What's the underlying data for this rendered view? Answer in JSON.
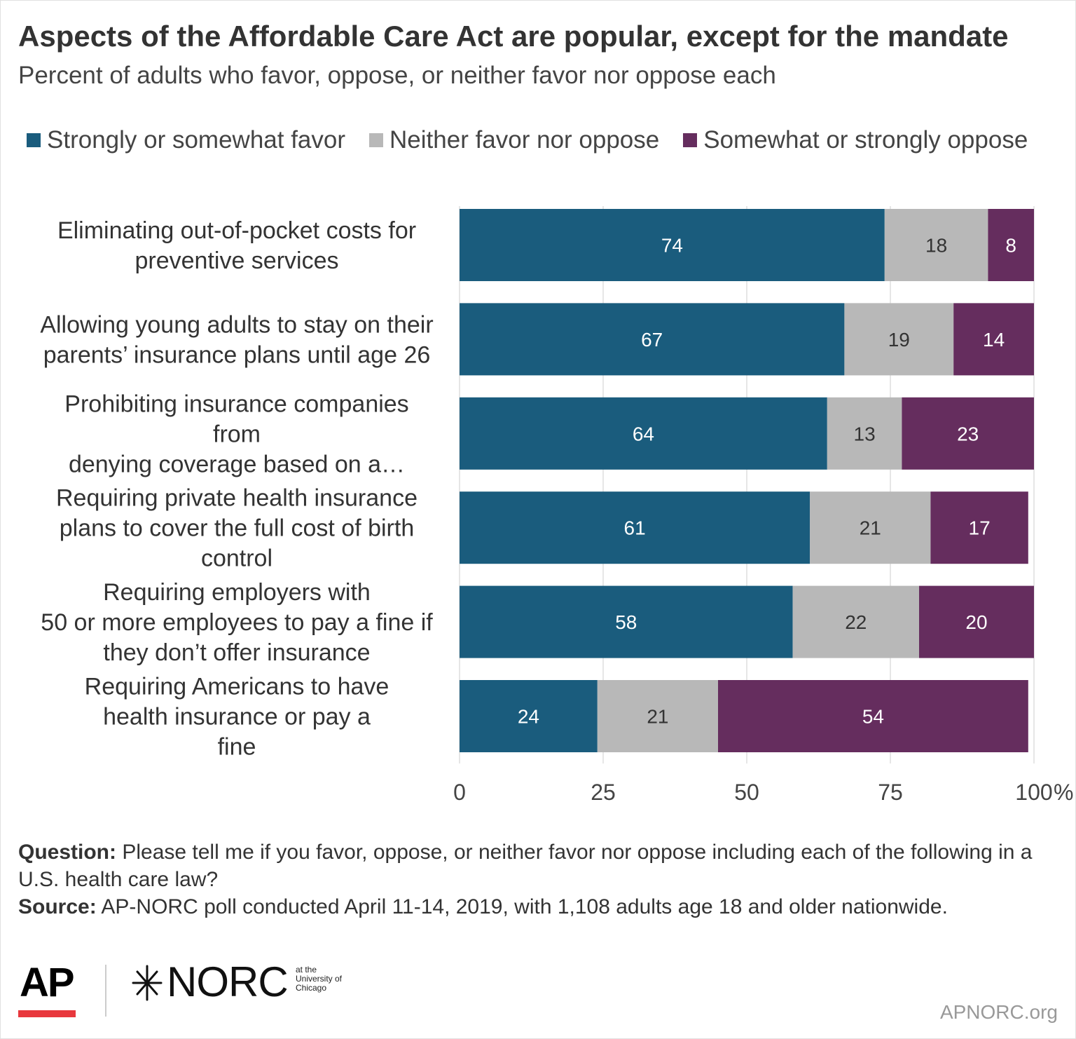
{
  "title": "Aspects of the Affordable Care Act are popular, except for the mandate",
  "subtitle": "Percent of adults who favor, oppose, or neither favor nor oppose each",
  "legend": [
    {
      "label": "Strongly or somewhat favor",
      "color": "#1a5c7d"
    },
    {
      "label": "Neither favor nor oppose",
      "color": "#b8b8b8"
    },
    {
      "label": "Somewhat or strongly oppose",
      "color": "#652d5e"
    }
  ],
  "chart_data": {
    "type": "bar",
    "orientation": "horizontal",
    "stacked": true,
    "categories": [
      [
        "Eliminating out-of-pocket costs for",
        "preventive services"
      ],
      [
        "Allowing young adults to stay on their",
        "parents’ insurance plans until age 26"
      ],
      [
        "Prohibiting insurance companies",
        "from",
        "denying coverage based on a…"
      ],
      [
        "Requiring private health insurance",
        "plans to cover the full cost of birth",
        "control"
      ],
      [
        "Requiring employers with",
        "50 or more employees to pay a fine if",
        "they don’t offer insurance"
      ],
      [
        "Requiring Americans to have",
        "health insurance or pay a",
        "fine"
      ]
    ],
    "series": [
      {
        "name": "Strongly or somewhat favor",
        "color": "#1a5c7d",
        "label_color": "#ffffff",
        "values": [
          74,
          67,
          64,
          61,
          58,
          24
        ]
      },
      {
        "name": "Neither favor nor oppose",
        "color": "#b8b8b8",
        "label_color": "#333333",
        "values": [
          18,
          19,
          13,
          21,
          22,
          21
        ]
      },
      {
        "name": "Somewhat or strongly oppose",
        "color": "#652d5e",
        "label_color": "#ffffff",
        "values": [
          8,
          14,
          23,
          17,
          20,
          54
        ]
      }
    ],
    "xlim": [
      0,
      100
    ],
    "xticks": [
      "0",
      "25",
      "50",
      "75",
      "100"
    ],
    "x_unit": "%",
    "grid": true
  },
  "notes": {
    "question_label": "Question:",
    "question_text": "Please tell me if you favor, oppose, or neither favor nor oppose including each of the following in a U.S. health care law?",
    "source_label": "Source:",
    "source_text": "AP-NORC poll conducted April 11-14, 2019, with 1,108 adults age 18 and older nationwide."
  },
  "branding": {
    "ap": "AP",
    "norc": "NORC",
    "norc_sub": [
      "at the",
      "University of",
      "Chicago"
    ],
    "site": "APNORC.org"
  }
}
